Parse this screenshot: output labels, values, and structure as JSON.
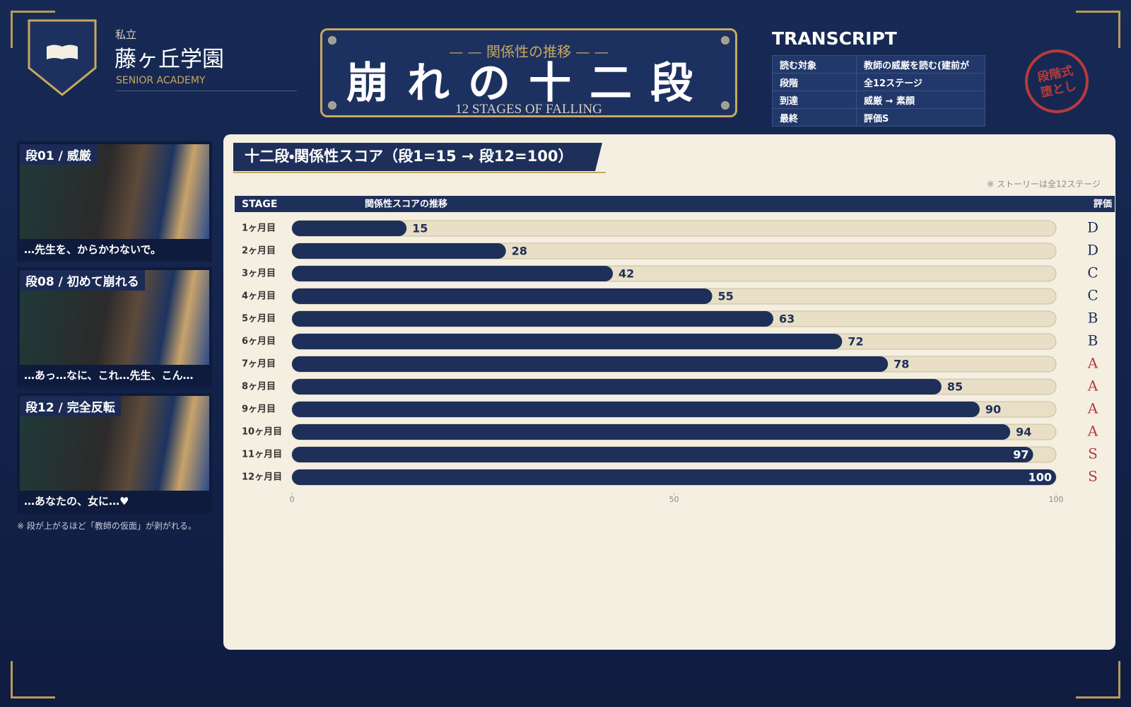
{
  "school": {
    "prefix": "私立",
    "name": "藤ヶ丘学園",
    "sub": "SENIOR ACADEMY"
  },
  "plate": {
    "subtitle": "関係性の推移",
    "title": "崩れの十二段",
    "english": "12 STAGES OF FALLING"
  },
  "transcript": {
    "title": "TRANSCRIPT",
    "rows": [
      [
        "読む対象",
        "教師の威厳を読む(建前が"
      ],
      [
        "段階",
        "全12ステージ"
      ],
      [
        "到達",
        "威厳 → 素顔"
      ],
      [
        "最終",
        "評価S"
      ]
    ]
  },
  "stamp": [
    "段階式",
    "堕とし"
  ],
  "panels": [
    {
      "label": "段01 / 威厳",
      "caption": "…先生を、からかわないで。"
    },
    {
      "label": "段08 / 初めて崩れる",
      "caption": "…あっ…なに、これ…先生、こん…"
    },
    {
      "label": "段12 / 完全反転",
      "caption": "…あなたの、女に…♥"
    }
  ],
  "panel_note": "※ 段が上がるほど「教師の仮面」が剥がれる。",
  "chart_data": {
    "type": "bar",
    "orientation": "horizontal",
    "title": "十二段・関係性スコア（段1=15 → 段12=100）",
    "note": "※ ストーリーは全12ステージ",
    "columns": [
      "STAGE",
      "関係性スコアの推移",
      "評価"
    ],
    "categories": [
      "1ヶ月目",
      "2ヶ月目",
      "3ヶ月目",
      "4ヶ月目",
      "5ヶ月目",
      "6ヶ月目",
      "7ヶ月目",
      "8ヶ月目",
      "9ヶ月目",
      "10ヶ月目",
      "11ヶ月目",
      "12ヶ月目"
    ],
    "values": [
      15,
      28,
      42,
      55,
      63,
      72,
      78,
      85,
      90,
      94,
      97,
      100
    ],
    "grades": [
      "D",
      "D",
      "C",
      "C",
      "B",
      "B",
      "A",
      "A",
      "A",
      "A",
      "S",
      "S"
    ],
    "grade_colors": {
      "D": "#1e2f5a",
      "C": "#1e2f5a",
      "B": "#1e2f5a",
      "A": "#b83a3a",
      "S": "#b83a3a"
    },
    "color": "#1e2f5a",
    "track_color": "#e8dfc6",
    "xlim": [
      0,
      100
    ],
    "xticks": [
      0,
      50,
      100
    ]
  }
}
